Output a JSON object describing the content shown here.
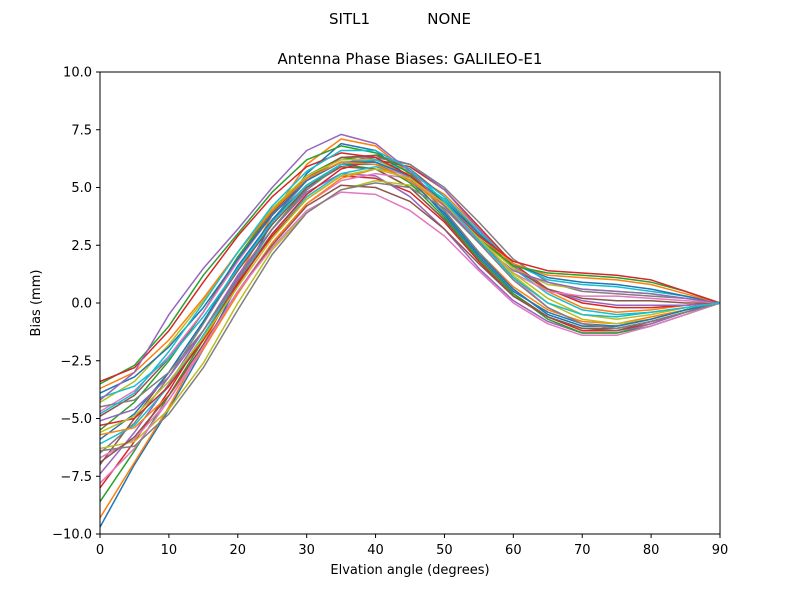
{
  "figure": {
    "suptitle": "SITL1            NONE"
  },
  "chart_data": {
    "type": "line",
    "title": "Antenna Phase Biases: GALILEO-E1",
    "xlabel": "Elvation angle (degrees)",
    "ylabel": "Bias (mm)",
    "xlim": [
      0,
      90
    ],
    "ylim": [
      -10.0,
      10.0
    ],
    "xticks": [
      "0",
      "10",
      "20",
      "30",
      "40",
      "50",
      "60",
      "70",
      "80",
      "90"
    ],
    "yticks": [
      "−10.0",
      "−7.5",
      "−5.0",
      "−2.5",
      "0.0",
      "2.5",
      "5.0",
      "7.5",
      "10.0"
    ],
    "grid": false,
    "legend": "none",
    "x": [
      0,
      5,
      10,
      15,
      20,
      25,
      30,
      35,
      40,
      45,
      50,
      55,
      60,
      65,
      70,
      75,
      80,
      85,
      90
    ],
    "colors": [
      "#1f77b4",
      "#ff7f0e",
      "#2ca02c",
      "#d62728",
      "#9467bd",
      "#8c564b",
      "#e377c2",
      "#7f7f7f",
      "#bcbd22",
      "#17becf"
    ],
    "series": [
      {
        "values": [
          -9.7,
          -7.0,
          -4.6,
          -2.0,
          0.8,
          3.5,
          5.6,
          6.9,
          6.6,
          5.4,
          3.8,
          2.0,
          0.5,
          -0.4,
          -0.9,
          -1.0,
          -0.7,
          -0.3,
          0.0
        ]
      },
      {
        "values": [
          -9.3,
          -6.9,
          -4.5,
          -1.8,
          1.1,
          3.8,
          6.0,
          7.1,
          6.8,
          5.6,
          4.0,
          2.2,
          0.7,
          -0.3,
          -0.8,
          -0.9,
          -0.6,
          -0.3,
          0.0
        ]
      },
      {
        "values": [
          -8.6,
          -6.4,
          -4.0,
          -1.6,
          1.0,
          3.2,
          5.0,
          6.0,
          5.8,
          5.0,
          3.6,
          1.9,
          0.4,
          -0.6,
          -1.1,
          -1.1,
          -0.8,
          -0.4,
          0.0
        ]
      },
      {
        "values": [
          -8.0,
          -6.0,
          -3.8,
          -1.4,
          0.9,
          2.9,
          4.5,
          5.5,
          5.4,
          4.8,
          3.5,
          1.8,
          0.3,
          -0.6,
          -1.2,
          -1.2,
          -0.9,
          -0.4,
          0.0
        ]
      },
      {
        "values": [
          -7.4,
          -5.6,
          -3.5,
          -1.2,
          1.2,
          3.2,
          4.8,
          5.6,
          5.5,
          4.6,
          3.2,
          1.5,
          0.1,
          -0.8,
          -1.3,
          -1.3,
          -0.9,
          -0.4,
          0.0
        ]
      },
      {
        "values": [
          -7.0,
          -5.0,
          -3.0,
          -0.8,
          1.4,
          3.4,
          5.0,
          5.9,
          5.8,
          5.0,
          3.6,
          1.9,
          0.4,
          -0.6,
          -1.1,
          -1.1,
          -0.8,
          -0.4,
          0.0
        ]
      },
      {
        "values": [
          -6.7,
          -5.9,
          -4.2,
          -2.0,
          0.5,
          2.6,
          4.3,
          5.3,
          5.6,
          5.4,
          4.4,
          2.8,
          1.1,
          -0.2,
          -0.9,
          -1.1,
          -0.8,
          -0.4,
          0.0
        ]
      },
      {
        "values": [
          -6.5,
          -5.2,
          -3.2,
          -0.9,
          1.5,
          3.6,
          5.3,
          6.3,
          6.3,
          5.5,
          4.0,
          2.2,
          0.6,
          -0.5,
          -1.0,
          -1.0,
          -0.7,
          -0.3,
          0.0
        ]
      },
      {
        "values": [
          -6.3,
          -6.0,
          -4.6,
          -2.6,
          0.0,
          2.3,
          3.9,
          4.9,
          5.3,
          5.1,
          4.3,
          2.8,
          1.2,
          0.0,
          -0.7,
          -0.9,
          -0.7,
          -0.3,
          0.0
        ]
      },
      {
        "values": [
          -6.1,
          -5.3,
          -3.6,
          -1.4,
          1.0,
          3.0,
          4.6,
          5.6,
          5.9,
          5.5,
          4.5,
          3.0,
          1.5,
          0.4,
          -0.3,
          -0.5,
          -0.4,
          -0.2,
          0.0
        ]
      },
      {
        "values": [
          -5.9,
          -4.8,
          -3.0,
          -0.8,
          1.6,
          3.6,
          5.1,
          6.0,
          6.0,
          5.3,
          3.9,
          2.1,
          0.6,
          -0.5,
          -1.0,
          -1.0,
          -0.7,
          -0.3,
          0.0
        ]
      },
      {
        "values": [
          -5.7,
          -5.4,
          -4.0,
          -2.0,
          0.4,
          2.6,
          4.3,
          5.4,
          5.8,
          5.6,
          4.7,
          3.2,
          1.6,
          0.5,
          -0.2,
          -0.4,
          -0.3,
          -0.1,
          0.0
        ]
      },
      {
        "values": [
          -5.5,
          -4.3,
          -2.5,
          -0.4,
          2.0,
          4.0,
          5.5,
          6.3,
          6.1,
          5.2,
          3.7,
          1.9,
          0.4,
          -0.7,
          -1.3,
          -1.3,
          -1.0,
          -0.5,
          0.0
        ]
      },
      {
        "values": [
          -5.3,
          -5.0,
          -3.6,
          -1.6,
          0.8,
          3.0,
          4.7,
          5.8,
          6.2,
          5.9,
          4.9,
          3.3,
          1.7,
          0.6,
          0.0,
          -0.2,
          -0.2,
          -0.1,
          0.0
        ]
      },
      {
        "values": [
          -5.1,
          -4.6,
          -3.2,
          -1.2,
          1.1,
          3.2,
          4.9,
          6.0,
          6.4,
          6.0,
          4.9,
          3.2,
          1.6,
          0.6,
          0.1,
          -0.1,
          -0.1,
          -0.1,
          0.0
        ]
      },
      {
        "values": [
          -4.9,
          -4.0,
          -2.4,
          -0.4,
          1.9,
          3.9,
          5.4,
          6.3,
          6.4,
          5.8,
          4.6,
          3.0,
          1.5,
          0.6,
          0.2,
          0.1,
          0.1,
          0.0,
          0.0
        ]
      },
      {
        "values": [
          -4.7,
          -3.8,
          -2.3,
          -0.4,
          1.8,
          3.8,
          5.3,
          6.1,
          6.1,
          5.4,
          4.2,
          2.7,
          1.3,
          0.5,
          0.3,
          0.3,
          0.2,
          0.1,
          0.0
        ]
      },
      {
        "values": [
          -4.5,
          -4.2,
          -3.0,
          -1.2,
          1.0,
          3.2,
          4.9,
          6.0,
          6.3,
          6.0,
          5.0,
          3.5,
          1.9,
          0.9,
          0.5,
          0.4,
          0.3,
          0.2,
          0.0
        ]
      },
      {
        "values": [
          -4.3,
          -3.4,
          -1.8,
          0.1,
          2.2,
          4.1,
          5.5,
          6.2,
          6.2,
          5.5,
          4.3,
          2.8,
          1.5,
          0.8,
          0.6,
          0.5,
          0.4,
          0.2,
          0.0
        ]
      },
      {
        "values": [
          -4.1,
          -3.6,
          -2.4,
          -0.6,
          1.5,
          3.5,
          5.1,
          6.0,
          6.2,
          5.7,
          4.6,
          3.1,
          1.7,
          1.0,
          0.8,
          0.7,
          0.5,
          0.3,
          0.0
        ]
      },
      {
        "values": [
          -3.9,
          -3.2,
          -1.9,
          -0.2,
          1.9,
          3.8,
          5.3,
          6.1,
          6.1,
          5.5,
          4.4,
          3.0,
          1.7,
          1.1,
          0.9,
          0.8,
          0.6,
          0.3,
          0.0
        ]
      },
      {
        "values": [
          -3.7,
          -3.0,
          -1.6,
          0.2,
          2.2,
          4.0,
          5.4,
          6.1,
          6.0,
          5.3,
          4.2,
          2.9,
          1.7,
          1.2,
          1.1,
          1.0,
          0.8,
          0.4,
          0.0
        ]
      },
      {
        "values": [
          -3.5,
          -2.7,
          -1.0,
          1.2,
          3.0,
          4.8,
          6.2,
          6.8,
          6.5,
          5.6,
          4.3,
          2.8,
          1.6,
          1.3,
          1.2,
          1.1,
          0.9,
          0.5,
          0.0
        ]
      },
      {
        "values": [
          -3.4,
          -2.8,
          -1.2,
          0.9,
          2.9,
          4.6,
          5.9,
          6.5,
          6.3,
          5.5,
          4.3,
          2.9,
          1.8,
          1.4,
          1.3,
          1.2,
          1.0,
          0.5,
          0.0
        ]
      },
      {
        "values": [
          -4.2,
          -3.0,
          -0.5,
          1.5,
          3.2,
          5.0,
          6.6,
          7.3,
          6.9,
          5.7,
          4.2,
          2.6,
          1.4,
          0.9,
          0.6,
          0.5,
          0.4,
          0.2,
          0.0
        ]
      },
      {
        "values": [
          -6.9,
          -5.8,
          -4.0,
          -1.8,
          0.5,
          2.5,
          4.2,
          5.1,
          5.0,
          4.4,
          3.2,
          1.7,
          0.3,
          -0.6,
          -1.1,
          -1.2,
          -0.8,
          -0.4,
          0.0
        ]
      },
      {
        "values": [
          -7.8,
          -6.3,
          -4.2,
          -1.9,
          0.5,
          2.4,
          4.0,
          4.8,
          4.7,
          4.0,
          2.9,
          1.4,
          0.0,
          -0.9,
          -1.4,
          -1.4,
          -1.0,
          -0.5,
          0.0
        ]
      },
      {
        "values": [
          -6.4,
          -6.2,
          -4.8,
          -2.8,
          -0.3,
          2.1,
          3.9,
          4.9,
          5.2,
          5.0,
          4.1,
          2.6,
          1.0,
          -0.2,
          -0.9,
          -1.1,
          -0.8,
          -0.4,
          0.0
        ]
      },
      {
        "values": [
          -5.6,
          -4.9,
          -3.4,
          -1.5,
          0.7,
          2.8,
          4.5,
          5.5,
          5.8,
          5.4,
          4.3,
          2.8,
          1.3,
          0.2,
          -0.5,
          -0.7,
          -0.5,
          -0.2,
          0.0
        ]
      },
      {
        "values": [
          -4.8,
          -3.9,
          -2.1,
          0.0,
          2.2,
          4.2,
          5.7,
          6.6,
          6.6,
          5.8,
          4.4,
          2.7,
          1.1,
          0.0,
          -0.5,
          -0.6,
          -0.4,
          -0.2,
          0.0
        ]
      }
    ]
  }
}
